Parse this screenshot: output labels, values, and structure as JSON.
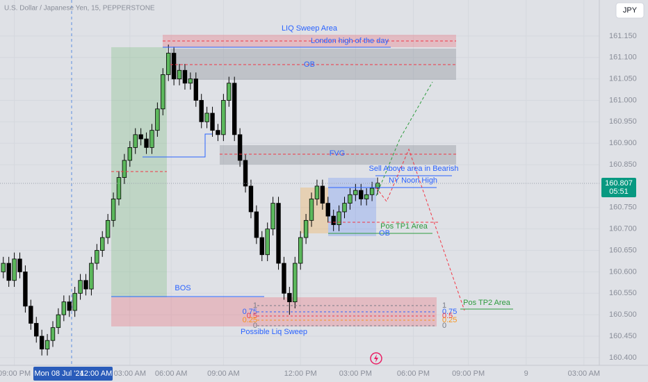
{
  "header": {
    "symbol": "U.S. Dollar / Japanese Yen, 15, PEPPERSTONE",
    "currency_button": "JPY"
  },
  "chart_data": {
    "type": "candlestick",
    "open": [
      160.6,
      160.62,
      160.58,
      160.63,
      160.6,
      160.52,
      160.48,
      160.45,
      160.42,
      160.44,
      160.47,
      160.5,
      160.53,
      160.51,
      160.55,
      160.58,
      160.56,
      160.62,
      160.65,
      160.68,
      160.72,
      160.77,
      160.82,
      160.86,
      160.89,
      160.92,
      160.91,
      160.89,
      160.93,
      160.98,
      161.06,
      161.11,
      161.05,
      161.07,
      161.04,
      161.05,
      161.0,
      160.95,
      160.97,
      160.93,
      160.92,
      161.0,
      161.04,
      160.92,
      160.86,
      160.8,
      160.74,
      160.68,
      160.64,
      160.7,
      160.76,
      160.62,
      160.55,
      160.53,
      160.62,
      160.68,
      160.72,
      160.77,
      160.8,
      160.76,
      160.73,
      160.71,
      160.74,
      160.76,
      160.78,
      160.79,
      160.77,
      160.78,
      160.795
    ],
    "high": [
      160.635,
      160.635,
      160.645,
      160.645,
      160.615,
      160.535,
      160.495,
      160.465,
      160.455,
      160.485,
      160.515,
      160.545,
      160.545,
      160.565,
      160.595,
      160.595,
      160.635,
      160.665,
      160.695,
      160.735,
      160.785,
      160.835,
      160.875,
      160.905,
      160.935,
      160.935,
      160.925,
      160.945,
      160.995,
      161.075,
      161.13,
      161.125,
      161.085,
      161.085,
      161.065,
      161.065,
      161.015,
      160.985,
      160.985,
      160.945,
      161.015,
      161.055,
      161.055,
      160.935,
      160.875,
      160.815,
      160.755,
      160.695,
      160.715,
      160.775,
      160.775,
      160.635,
      160.565,
      160.635,
      160.695,
      160.735,
      160.785,
      160.815,
      160.815,
      160.775,
      160.745,
      160.755,
      160.775,
      160.795,
      160.805,
      160.805,
      160.795,
      160.81,
      160.82
    ],
    "low": [
      160.585,
      160.565,
      160.565,
      160.585,
      160.505,
      160.465,
      160.435,
      160.405,
      160.405,
      160.425,
      160.455,
      160.485,
      160.495,
      160.495,
      160.535,
      160.545,
      160.545,
      160.605,
      160.635,
      160.665,
      160.705,
      160.755,
      160.805,
      160.845,
      160.875,
      160.895,
      160.875,
      160.875,
      160.915,
      160.965,
      161.045,
      161.035,
      161.035,
      161.025,
      161.025,
      160.985,
      160.935,
      160.935,
      160.915,
      160.905,
      160.905,
      160.985,
      160.905,
      160.845,
      160.785,
      160.725,
      160.665,
      160.625,
      160.625,
      160.685,
      160.605,
      160.535,
      160.5,
      160.515,
      160.605,
      160.665,
      160.705,
      160.755,
      160.745,
      160.715,
      160.695,
      160.695,
      160.725,
      160.745,
      160.765,
      160.755,
      160.755,
      160.765,
      160.78
    ],
    "close": [
      160.62,
      160.58,
      160.63,
      160.6,
      160.52,
      160.48,
      160.45,
      160.42,
      160.44,
      160.47,
      160.5,
      160.53,
      160.51,
      160.55,
      160.58,
      160.56,
      160.62,
      160.65,
      160.68,
      160.72,
      160.77,
      160.82,
      160.86,
      160.89,
      160.92,
      160.91,
      160.89,
      160.93,
      160.98,
      161.06,
      161.11,
      161.05,
      161.07,
      161.04,
      161.05,
      161.0,
      160.95,
      160.97,
      160.93,
      160.92,
      161.0,
      161.04,
      160.92,
      160.86,
      160.8,
      160.74,
      160.68,
      160.64,
      160.7,
      160.76,
      160.62,
      160.55,
      160.53,
      160.62,
      160.68,
      160.72,
      160.77,
      160.8,
      160.76,
      160.73,
      160.71,
      160.74,
      160.76,
      160.78,
      160.79,
      160.77,
      160.78,
      160.795,
      160.807
    ],
    "up_color": "#5cb85c",
    "down_color": "#000000",
    "xlim": [
      -0.6,
      108.3
    ],
    "xticks": [
      {
        "value": 2,
        "label": "09:00 PM"
      },
      {
        "value": 23,
        "label": "03:00 AM"
      },
      {
        "value": 30.5,
        "label": "06:00 AM"
      },
      {
        "value": 40,
        "label": "09:00 AM"
      },
      {
        "value": 54,
        "label": "12:00 PM"
      },
      {
        "value": 64,
        "label": "03:00 PM"
      },
      {
        "value": 74.5,
        "label": "06:00 PM"
      },
      {
        "value": 84.5,
        "label": "09:00 PM"
      },
      {
        "value": 95,
        "label": "9"
      },
      {
        "value": 105.5,
        "label": "03:00 AM"
      }
    ],
    "ylim": [
      160.382,
      161.234
    ],
    "yticks": [
      {
        "value": 161.15,
        "label": "161.150"
      },
      {
        "value": 161.1,
        "label": "161.100"
      },
      {
        "value": 161.05,
        "label": "161.050"
      },
      {
        "value": 161,
        "label": "161.000"
      },
      {
        "value": 160.95,
        "label": "160.950"
      },
      {
        "value": 160.9,
        "label": "160.900"
      },
      {
        "value": 160.85,
        "label": "160.850"
      },
      {
        "value": 160.75,
        "label": "160.750"
      },
      {
        "value": 160.7,
        "label": "160.700"
      },
      {
        "value": 160.65,
        "label": "160.650"
      },
      {
        "value": 160.6,
        "label": "160.600"
      },
      {
        "value": 160.55,
        "label": "160.550"
      },
      {
        "value": 160.5,
        "label": "160.500"
      },
      {
        "value": 160.45,
        "label": "160.450"
      },
      {
        "value": 160.4,
        "label": "160.400"
      }
    ],
    "last_price": 160.807,
    "countdown": "05:51",
    "crosshair": {
      "date": "Mon 08 Jul '24",
      "time": "12:00 AM"
    },
    "grid": true
  },
  "annotations": {
    "liq_sweep": "LIQ Sweep Area",
    "london_high": "London high of the day",
    "ob_top": "OB",
    "fvg": "FVG",
    "sell_above": "Sell Above area in Bearish",
    "ny_noon": "NY Noon High",
    "tp1": "Pos TP1 Area",
    "ob_low": "OB",
    "bos": "BOS",
    "possible_sweep": "Possible Liq Sweep",
    "tp2": "Pos TP2 Area",
    "fib_levels": [
      1,
      0.75,
      0.5,
      0.25,
      0
    ]
  }
}
